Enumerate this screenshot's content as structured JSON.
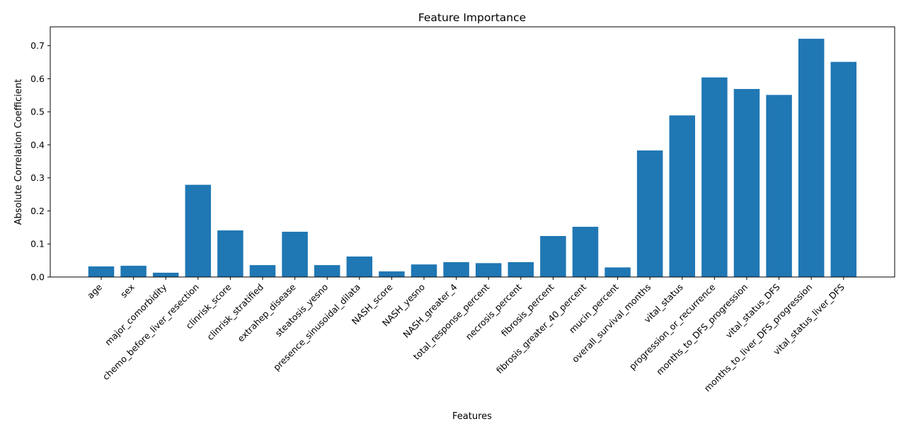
{
  "chart_data": {
    "type": "bar",
    "title": "Feature Importance",
    "xlabel": "Features",
    "ylabel": "Absolute Correlation Coefficient",
    "ylim": [
      0,
      0.757
    ],
    "yticks": [
      "0.0",
      "0.1",
      "0.2",
      "0.3",
      "0.4",
      "0.5",
      "0.6",
      "0.7"
    ],
    "grid": false,
    "bar_color": "#1f77b4",
    "categories": [
      "age",
      "sex",
      "major_comorbidity",
      "chemo_before_liver_resection",
      "clinrisk_score",
      "clinrisk_stratified",
      "extrahep_disease",
      "steatosis_yesno",
      "presence_sinusoidal_dilata",
      "NASH_score",
      "NASH_yesno",
      "NASH_greater_4",
      "total_response_percent",
      "necrosis_percent",
      "fibrosis_percent",
      "fibrosis_greater_40_percent",
      "mucin_percent",
      "overall_survival_months",
      "vital_status",
      "progression_or_recurrence",
      "months_to_DFS_progression",
      "vital_status_DFS",
      "months_to_liver_DFS_progression",
      "vital_status_liver_DFS"
    ],
    "values": [
      0.032,
      0.034,
      0.013,
      0.279,
      0.141,
      0.036,
      0.137,
      0.036,
      0.062,
      0.017,
      0.038,
      0.045,
      0.042,
      0.045,
      0.124,
      0.152,
      0.029,
      0.383,
      0.489,
      0.604,
      0.569,
      0.551,
      0.721,
      0.651
    ]
  }
}
